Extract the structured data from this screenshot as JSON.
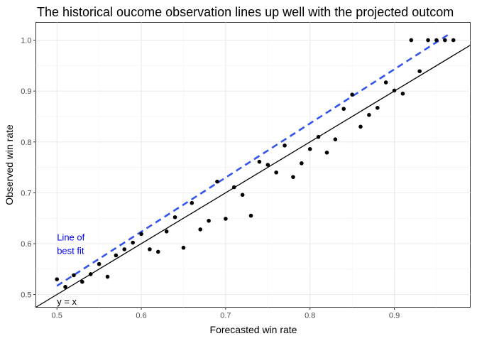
{
  "chart_data": {
    "type": "scatter",
    "title": "The historical oucome observation lines up well with the projected outcom",
    "xlabel": "Forecasted win rate",
    "ylabel": "Observed win rate",
    "xlim": [
      0.475,
      0.99
    ],
    "ylim": [
      0.475,
      1.035
    ],
    "x_ticks": [
      0.5,
      0.6,
      0.7,
      0.8,
      0.9
    ],
    "x_tick_labels": [
      "0.5",
      "0.6",
      "0.7",
      "0.8",
      "0.9"
    ],
    "y_ticks": [
      0.5,
      0.6,
      0.7,
      0.8,
      0.9,
      1.0
    ],
    "y_tick_labels": [
      "0.5",
      "0.6",
      "0.7",
      "0.8",
      "0.9",
      "1.0"
    ],
    "grid": true,
    "points": [
      {
        "x": 0.5,
        "y": 0.53
      },
      {
        "x": 0.51,
        "y": 0.515
      },
      {
        "x": 0.52,
        "y": 0.538
      },
      {
        "x": 0.53,
        "y": 0.525
      },
      {
        "x": 0.54,
        "y": 0.54
      },
      {
        "x": 0.55,
        "y": 0.56
      },
      {
        "x": 0.56,
        "y": 0.535
      },
      {
        "x": 0.57,
        "y": 0.577
      },
      {
        "x": 0.58,
        "y": 0.589
      },
      {
        "x": 0.59,
        "y": 0.602
      },
      {
        "x": 0.6,
        "y": 0.619
      },
      {
        "x": 0.61,
        "y": 0.589
      },
      {
        "x": 0.62,
        "y": 0.584
      },
      {
        "x": 0.63,
        "y": 0.624
      },
      {
        "x": 0.64,
        "y": 0.652
      },
      {
        "x": 0.65,
        "y": 0.592
      },
      {
        "x": 0.66,
        "y": 0.68
      },
      {
        "x": 0.67,
        "y": 0.628
      },
      {
        "x": 0.68,
        "y": 0.645
      },
      {
        "x": 0.69,
        "y": 0.722
      },
      {
        "x": 0.7,
        "y": 0.649
      },
      {
        "x": 0.71,
        "y": 0.711
      },
      {
        "x": 0.72,
        "y": 0.696
      },
      {
        "x": 0.73,
        "y": 0.655
      },
      {
        "x": 0.74,
        "y": 0.761
      },
      {
        "x": 0.75,
        "y": 0.755
      },
      {
        "x": 0.76,
        "y": 0.74
      },
      {
        "x": 0.77,
        "y": 0.793
      },
      {
        "x": 0.78,
        "y": 0.731
      },
      {
        "x": 0.79,
        "y": 0.758
      },
      {
        "x": 0.8,
        "y": 0.786
      },
      {
        "x": 0.81,
        "y": 0.81
      },
      {
        "x": 0.82,
        "y": 0.779
      },
      {
        "x": 0.83,
        "y": 0.805
      },
      {
        "x": 0.84,
        "y": 0.865
      },
      {
        "x": 0.85,
        "y": 0.893
      },
      {
        "x": 0.86,
        "y": 0.83
      },
      {
        "x": 0.87,
        "y": 0.853
      },
      {
        "x": 0.88,
        "y": 0.867
      },
      {
        "x": 0.89,
        "y": 0.917
      },
      {
        "x": 0.9,
        "y": 0.901
      },
      {
        "x": 0.91,
        "y": 0.895
      },
      {
        "x": 0.92,
        "y": 1.0
      },
      {
        "x": 0.93,
        "y": 0.939
      },
      {
        "x": 0.94,
        "y": 1.0
      },
      {
        "x": 0.95,
        "y": 1.0
      },
      {
        "x": 0.96,
        "y": 1.0
      },
      {
        "x": 0.97,
        "y": 1.0
      }
    ],
    "identity_line": {
      "label": "y = x",
      "from": [
        0.475,
        0.475
      ],
      "to": [
        0.99,
        0.99
      ],
      "color": "#000000"
    },
    "best_fit_line": {
      "label_line1": "Line of",
      "label_line2": "best fit",
      "from": [
        0.5,
        0.517
      ],
      "to": [
        0.965,
        1.012
      ],
      "color": "#3355EE"
    },
    "annotation_color": "#0000FF"
  }
}
